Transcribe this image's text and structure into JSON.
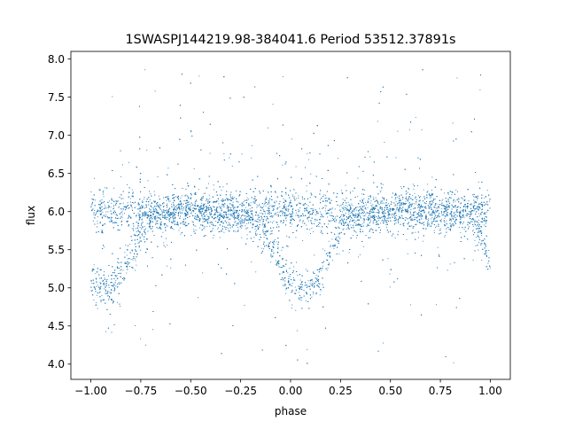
{
  "chart_data": {
    "type": "scatter",
    "title": "1SWASPJ144219.98-384041.6 Period 53512.37891s",
    "xlabel": "phase",
    "ylabel": "flux",
    "xlim": [
      -1.1,
      1.1
    ],
    "ylim": [
      3.8,
      8.1
    ],
    "xticks": [
      -1.0,
      -0.75,
      -0.5,
      -0.25,
      0.0,
      0.25,
      0.5,
      0.75,
      1.0
    ],
    "xtick_labels": [
      "−1.00",
      "−0.75",
      "−0.50",
      "−0.25",
      "0.00",
      "0.25",
      "0.50",
      "0.75",
      "1.00"
    ],
    "yticks": [
      4.0,
      4.5,
      5.0,
      5.5,
      6.0,
      6.5,
      7.0,
      7.5,
      8.0
    ],
    "ytick_labels": [
      "4.0",
      "4.5",
      "5.0",
      "5.5",
      "6.0",
      "6.5",
      "7.0",
      "7.5",
      "8.0"
    ],
    "grid": false,
    "legend": "none",
    "marker_color": "#1f77b4",
    "series": [
      {
        "description_points": {
          "x": [
            -1.0,
            -0.95,
            -0.9,
            -0.85,
            -0.8,
            -0.75,
            -0.7,
            -0.6,
            -0.5,
            -0.4,
            -0.3,
            -0.2,
            -0.1,
            -0.05,
            0.0,
            0.05,
            0.1,
            0.15,
            0.2,
            0.25,
            0.3,
            0.4,
            0.5,
            0.6,
            0.7,
            0.8,
            0.9,
            0.95,
            1.0
          ],
          "y": [
            5.05,
            4.98,
            5.0,
            5.15,
            5.4,
            5.7,
            5.95,
            6.0,
            6.0,
            6.0,
            6.0,
            5.95,
            5.65,
            5.3,
            5.05,
            4.98,
            5.02,
            5.2,
            5.45,
            5.75,
            5.95,
            6.0,
            6.0,
            6.0,
            6.0,
            6.0,
            5.95,
            5.7,
            5.3
          ]
        }
      }
    ]
  }
}
